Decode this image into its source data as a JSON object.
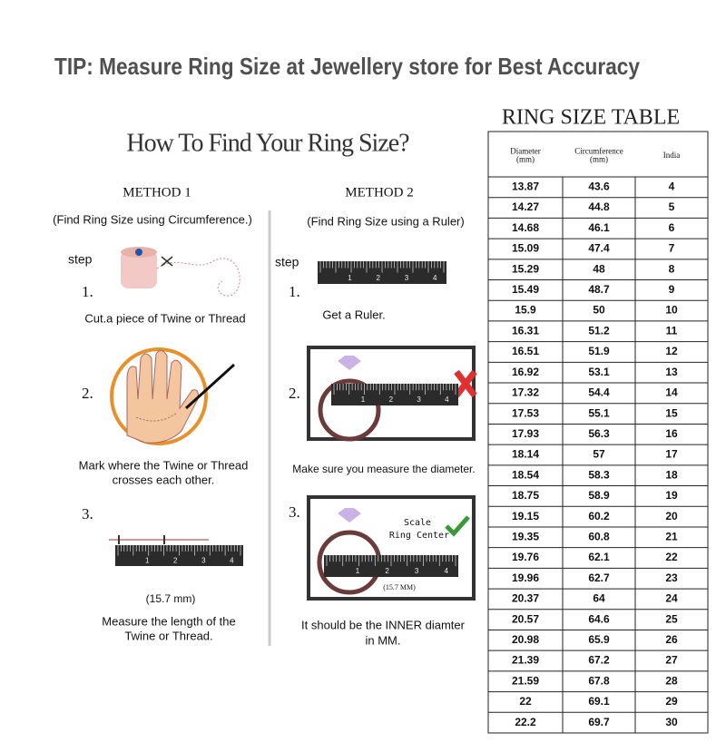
{
  "tip": "TIP: Measure Ring Size at Jewellery store for Best Accuracy",
  "guide": {
    "title": "How To Find Your Ring Size?",
    "ruler_labels": [
      "1",
      "2",
      "3",
      "4"
    ],
    "methods": [
      {
        "title": "METHOD 1",
        "subtitle": "(Find Ring Size using Circumference.)",
        "step_label": "step",
        "steps": [
          {
            "number": "1.",
            "text": [
              "Cut.a piece of Twine or Thread"
            ]
          },
          {
            "number": "2.",
            "text": [
              "Mark where the Twine or Thread",
              "crosses each other."
            ]
          },
          {
            "number": "3.",
            "annotations": [
              "(15.7 mm)"
            ],
            "text": [
              "Measure the length of the",
              "Twine or Thread."
            ]
          }
        ]
      },
      {
        "title": "METHOD 2",
        "subtitle": "(Find Ring Size using a Ruler)",
        "step_label": "step",
        "steps": [
          {
            "number": "1.",
            "text": [
              "Get a Ruler."
            ]
          },
          {
            "number": "2.",
            "text": [
              "Make sure you measure the diameter."
            ]
          },
          {
            "number": "3.",
            "annotations": [
              "Scale",
              "Ring Center",
              "(15.7 MM)"
            ],
            "text": [
              "It should be the INNER diamter",
              "in MM."
            ]
          }
        ]
      }
    ]
  },
  "table": {
    "title": "RING SIZE TABLE",
    "headers": [
      [
        "Diameter",
        "(mm)"
      ],
      [
        "Circumference",
        "(mm)"
      ],
      [
        "India"
      ]
    ],
    "rows": [
      [
        "13.87",
        "43.6",
        "4"
      ],
      [
        "14.27",
        "44.8",
        "5"
      ],
      [
        "14.68",
        "46.1",
        "6"
      ],
      [
        "15.09",
        "47.4",
        "7"
      ],
      [
        "15.29",
        "48",
        "8"
      ],
      [
        "15.49",
        "48.7",
        "9"
      ],
      [
        "15.9",
        "50",
        "10"
      ],
      [
        "16.31",
        "51.2",
        "11"
      ],
      [
        "16.51",
        "51.9",
        "12"
      ],
      [
        "16.92",
        "53.1",
        "13"
      ],
      [
        "17.32",
        "54.4",
        "14"
      ],
      [
        "17.53",
        "55.1",
        "15"
      ],
      [
        "17.93",
        "56.3",
        "16"
      ],
      [
        "18.14",
        "57",
        "17"
      ],
      [
        "18.54",
        "58.3",
        "18"
      ],
      [
        "18.75",
        "58.9",
        "19"
      ],
      [
        "19.15",
        "60.2",
        "20"
      ],
      [
        "19.35",
        "60.8",
        "21"
      ],
      [
        "19.76",
        "62.1",
        "22"
      ],
      [
        "19.96",
        "62.7",
        "23"
      ],
      [
        "20.37",
        "64",
        "24"
      ],
      [
        "20.57",
        "64.6",
        "25"
      ],
      [
        "20.98",
        "65.9",
        "26"
      ],
      [
        "21.39",
        "67.2",
        "27"
      ],
      [
        "21.59",
        "67.8",
        "28"
      ],
      [
        "22",
        "69.1",
        "29"
      ],
      [
        "22.2",
        "69.7",
        "30"
      ]
    ]
  }
}
